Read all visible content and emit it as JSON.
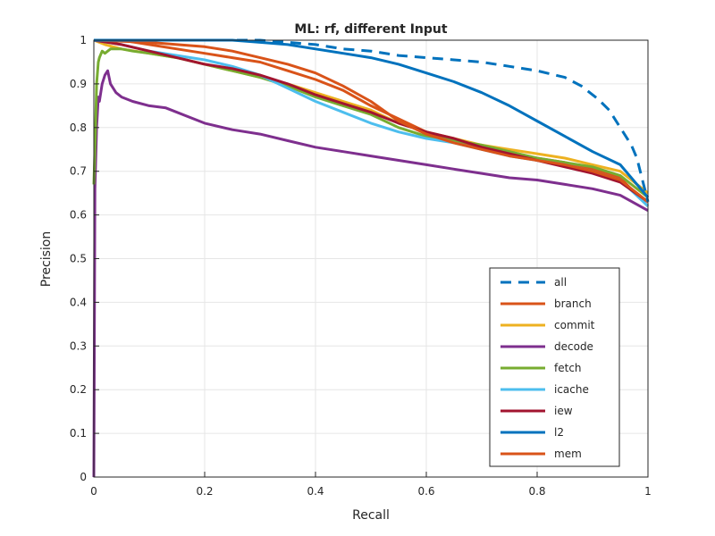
{
  "chart_data": {
    "type": "line",
    "title": "ML: rf, different Input",
    "xlabel": "Recall",
    "ylabel": "Precision",
    "xlim": [
      0,
      1
    ],
    "ylim": [
      0,
      1
    ],
    "grid": true,
    "legend_position": "bottom-right",
    "xticks": [
      "0",
      "0.2",
      "0.4",
      "0.6",
      "0.8",
      "1"
    ],
    "yticks": [
      "0",
      "0.1",
      "0.2",
      "0.3",
      "0.4",
      "0.5",
      "0.6",
      "0.7",
      "0.8",
      "0.9",
      "1"
    ],
    "series": [
      {
        "name": "all",
        "color": "#0072BD",
        "dash": true,
        "points": [
          [
            0,
            1
          ],
          [
            0.1,
            1
          ],
          [
            0.2,
            1
          ],
          [
            0.3,
            1
          ],
          [
            0.35,
            0.995
          ],
          [
            0.4,
            0.99
          ],
          [
            0.45,
            0.98
          ],
          [
            0.5,
            0.975
          ],
          [
            0.55,
            0.965
          ],
          [
            0.6,
            0.96
          ],
          [
            0.65,
            0.955
          ],
          [
            0.7,
            0.95
          ],
          [
            0.75,
            0.94
          ],
          [
            0.8,
            0.93
          ],
          [
            0.85,
            0.915
          ],
          [
            0.88,
            0.895
          ],
          [
            0.91,
            0.865
          ],
          [
            0.93,
            0.84
          ],
          [
            0.95,
            0.8
          ],
          [
            0.97,
            0.76
          ],
          [
            0.98,
            0.73
          ],
          [
            0.99,
            0.68
          ],
          [
            1,
            0.63
          ]
        ]
      },
      {
        "name": "branch",
        "color": "#D95319",
        "dash": false,
        "points": [
          [
            0,
            1
          ],
          [
            0.05,
            1
          ],
          [
            0.1,
            0.99
          ],
          [
            0.15,
            0.98
          ],
          [
            0.2,
            0.97
          ],
          [
            0.25,
            0.96
          ],
          [
            0.3,
            0.95
          ],
          [
            0.35,
            0.93
          ],
          [
            0.4,
            0.91
          ],
          [
            0.45,
            0.885
          ],
          [
            0.5,
            0.85
          ],
          [
            0.55,
            0.82
          ],
          [
            0.6,
            0.79
          ],
          [
            0.65,
            0.77
          ],
          [
            0.7,
            0.755
          ],
          [
            0.75,
            0.74
          ],
          [
            0.8,
            0.73
          ],
          [
            0.85,
            0.72
          ],
          [
            0.9,
            0.705
          ],
          [
            0.95,
            0.685
          ],
          [
            1,
            0.62
          ]
        ]
      },
      {
        "name": "commit",
        "color": "#EDB120",
        "dash": false,
        "points": [
          [
            0,
            1
          ],
          [
            0.02,
            0.99
          ],
          [
            0.05,
            0.98
          ],
          [
            0.1,
            0.97
          ],
          [
            0.15,
            0.96
          ],
          [
            0.2,
            0.945
          ],
          [
            0.25,
            0.93
          ],
          [
            0.3,
            0.915
          ],
          [
            0.35,
            0.9
          ],
          [
            0.4,
            0.88
          ],
          [
            0.45,
            0.86
          ],
          [
            0.5,
            0.84
          ],
          [
            0.55,
            0.81
          ],
          [
            0.6,
            0.79
          ],
          [
            0.65,
            0.775
          ],
          [
            0.7,
            0.76
          ],
          [
            0.75,
            0.75
          ],
          [
            0.8,
            0.74
          ],
          [
            0.85,
            0.73
          ],
          [
            0.9,
            0.715
          ],
          [
            0.95,
            0.7
          ],
          [
            1,
            0.65
          ]
        ]
      },
      {
        "name": "decode",
        "color": "#7E2F8E",
        "dash": false,
        "points": [
          [
            0,
            0
          ],
          [
            0.002,
            0.66
          ],
          [
            0.005,
            0.8
          ],
          [
            0.008,
            0.87
          ],
          [
            0.01,
            0.86
          ],
          [
            0.015,
            0.9
          ],
          [
            0.02,
            0.92
          ],
          [
            0.025,
            0.93
          ],
          [
            0.03,
            0.9
          ],
          [
            0.04,
            0.88
          ],
          [
            0.05,
            0.87
          ],
          [
            0.07,
            0.86
          ],
          [
            0.1,
            0.85
          ],
          [
            0.13,
            0.845
          ],
          [
            0.15,
            0.835
          ],
          [
            0.2,
            0.81
          ],
          [
            0.25,
            0.795
          ],
          [
            0.3,
            0.785
          ],
          [
            0.35,
            0.77
          ],
          [
            0.4,
            0.755
          ],
          [
            0.45,
            0.745
          ],
          [
            0.5,
            0.735
          ],
          [
            0.55,
            0.725
          ],
          [
            0.6,
            0.715
          ],
          [
            0.65,
            0.705
          ],
          [
            0.7,
            0.695
          ],
          [
            0.75,
            0.685
          ],
          [
            0.8,
            0.68
          ],
          [
            0.85,
            0.67
          ],
          [
            0.9,
            0.66
          ],
          [
            0.95,
            0.645
          ],
          [
            1,
            0.61
          ]
        ]
      },
      {
        "name": "fetch",
        "color": "#77AC30",
        "dash": false,
        "points": [
          [
            0,
            0.67
          ],
          [
            0.003,
            0.8
          ],
          [
            0.005,
            0.9
          ],
          [
            0.008,
            0.95
          ],
          [
            0.01,
            0.96
          ],
          [
            0.015,
            0.975
          ],
          [
            0.02,
            0.97
          ],
          [
            0.03,
            0.98
          ],
          [
            0.05,
            0.98
          ],
          [
            0.07,
            0.975
          ],
          [
            0.1,
            0.97
          ],
          [
            0.15,
            0.96
          ],
          [
            0.2,
            0.945
          ],
          [
            0.25,
            0.93
          ],
          [
            0.3,
            0.915
          ],
          [
            0.35,
            0.895
          ],
          [
            0.4,
            0.87
          ],
          [
            0.45,
            0.85
          ],
          [
            0.5,
            0.83
          ],
          [
            0.55,
            0.8
          ],
          [
            0.6,
            0.78
          ],
          [
            0.65,
            0.77
          ],
          [
            0.7,
            0.76
          ],
          [
            0.75,
            0.745
          ],
          [
            0.8,
            0.73
          ],
          [
            0.85,
            0.72
          ],
          [
            0.9,
            0.71
          ],
          [
            0.95,
            0.69
          ],
          [
            1,
            0.64
          ]
        ]
      },
      {
        "name": "icache",
        "color": "#4DBEEE",
        "dash": false,
        "points": [
          [
            0,
            1
          ],
          [
            0.05,
            0.99
          ],
          [
            0.1,
            0.975
          ],
          [
            0.15,
            0.965
          ],
          [
            0.2,
            0.955
          ],
          [
            0.25,
            0.94
          ],
          [
            0.3,
            0.92
          ],
          [
            0.35,
            0.89
          ],
          [
            0.4,
            0.86
          ],
          [
            0.45,
            0.835
          ],
          [
            0.5,
            0.81
          ],
          [
            0.55,
            0.79
          ],
          [
            0.6,
            0.775
          ],
          [
            0.65,
            0.765
          ],
          [
            0.7,
            0.75
          ],
          [
            0.75,
            0.735
          ],
          [
            0.8,
            0.725
          ],
          [
            0.85,
            0.715
          ],
          [
            0.9,
            0.7
          ],
          [
            0.95,
            0.68
          ],
          [
            1,
            0.62
          ]
        ]
      },
      {
        "name": "iew",
        "color": "#A2142F",
        "dash": false,
        "points": [
          [
            0,
            1
          ],
          [
            0.05,
            0.99
          ],
          [
            0.1,
            0.975
          ],
          [
            0.15,
            0.96
          ],
          [
            0.2,
            0.945
          ],
          [
            0.25,
            0.935
          ],
          [
            0.3,
            0.92
          ],
          [
            0.35,
            0.9
          ],
          [
            0.4,
            0.875
          ],
          [
            0.45,
            0.855
          ],
          [
            0.5,
            0.835
          ],
          [
            0.55,
            0.81
          ],
          [
            0.6,
            0.79
          ],
          [
            0.65,
            0.775
          ],
          [
            0.7,
            0.755
          ],
          [
            0.75,
            0.74
          ],
          [
            0.8,
            0.725
          ],
          [
            0.85,
            0.71
          ],
          [
            0.9,
            0.695
          ],
          [
            0.95,
            0.675
          ],
          [
            1,
            0.63
          ]
        ]
      },
      {
        "name": "l2",
        "color": "#0072BD",
        "dash": false,
        "points": [
          [
            0,
            1
          ],
          [
            0.1,
            1
          ],
          [
            0.2,
            1
          ],
          [
            0.25,
            1
          ],
          [
            0.3,
            0.995
          ],
          [
            0.35,
            0.99
          ],
          [
            0.4,
            0.98
          ],
          [
            0.45,
            0.97
          ],
          [
            0.5,
            0.96
          ],
          [
            0.55,
            0.945
          ],
          [
            0.6,
            0.925
          ],
          [
            0.65,
            0.905
          ],
          [
            0.7,
            0.88
          ],
          [
            0.75,
            0.85
          ],
          [
            0.8,
            0.815
          ],
          [
            0.85,
            0.78
          ],
          [
            0.9,
            0.745
          ],
          [
            0.95,
            0.715
          ],
          [
            1,
            0.64
          ]
        ]
      },
      {
        "name": "mem",
        "color": "#D95319",
        "dash": false,
        "points": [
          [
            0,
            1
          ],
          [
            0.1,
            0.995
          ],
          [
            0.15,
            0.99
          ],
          [
            0.2,
            0.985
          ],
          [
            0.25,
            0.975
          ],
          [
            0.3,
            0.96
          ],
          [
            0.35,
            0.945
          ],
          [
            0.4,
            0.925
          ],
          [
            0.45,
            0.895
          ],
          [
            0.5,
            0.86
          ],
          [
            0.55,
            0.815
          ],
          [
            0.6,
            0.785
          ],
          [
            0.65,
            0.765
          ],
          [
            0.7,
            0.75
          ],
          [
            0.75,
            0.735
          ],
          [
            0.8,
            0.725
          ],
          [
            0.85,
            0.715
          ],
          [
            0.9,
            0.7
          ],
          [
            0.95,
            0.68
          ],
          [
            1,
            0.63
          ]
        ]
      }
    ]
  }
}
